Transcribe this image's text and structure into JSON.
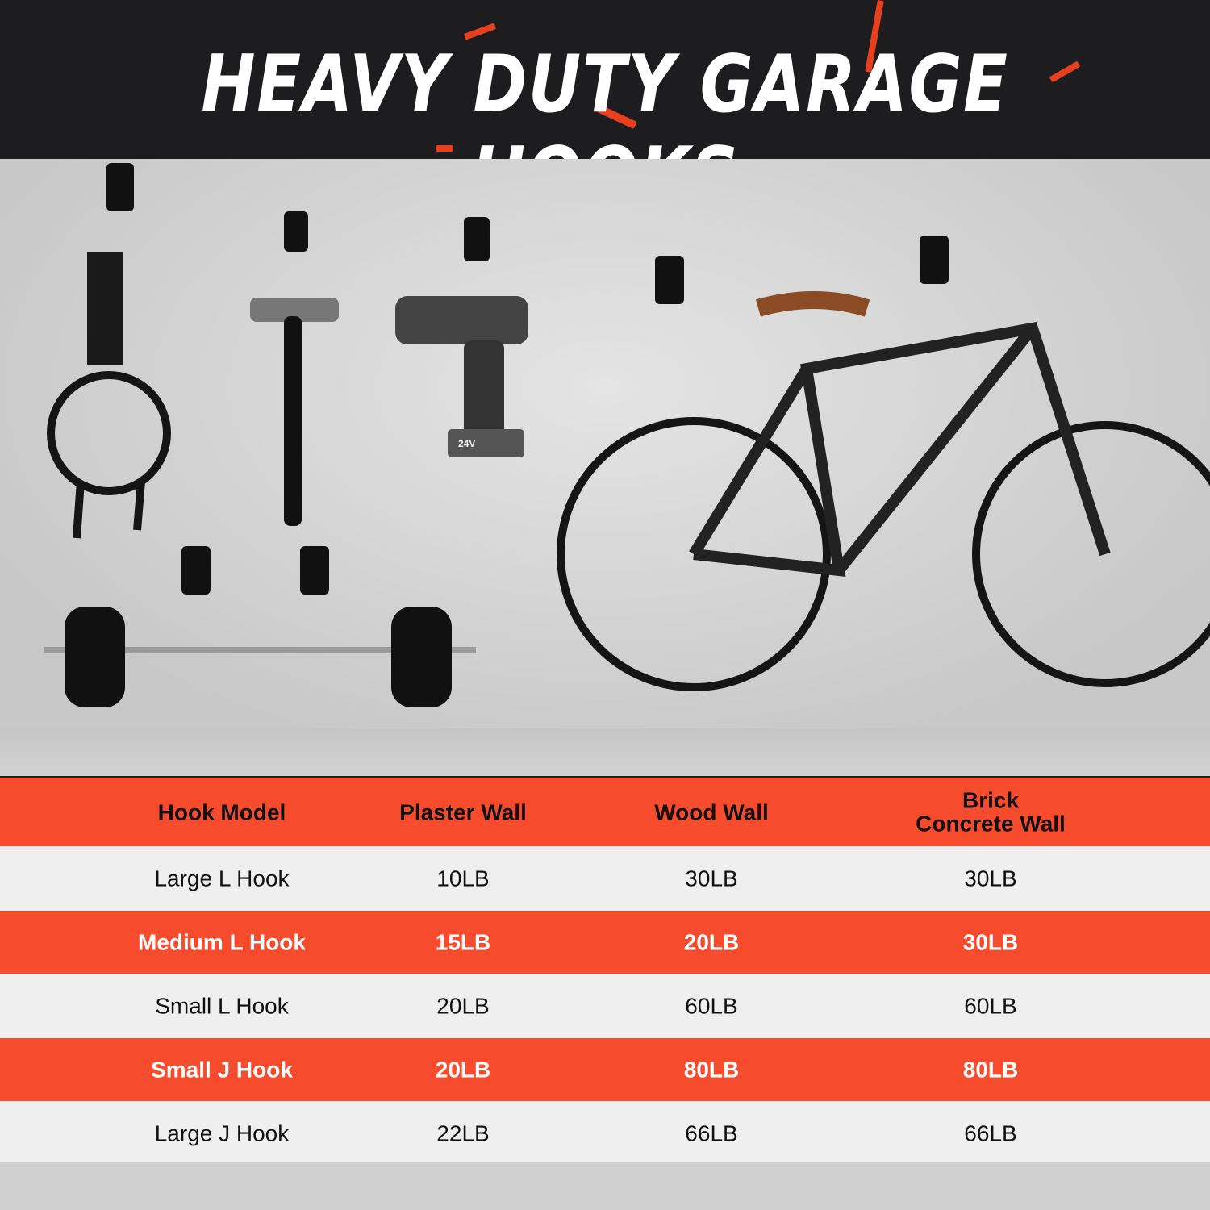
{
  "banner": {
    "title": "HEAVY DUTY GARAGE HOOKS",
    "accent": "#e8401f",
    "background": "#1d1d1f"
  },
  "photo": {
    "items": [
      "extension-cord",
      "hammer",
      "drill",
      "barbell",
      "bicycle"
    ],
    "drill_label": "24V"
  },
  "table": {
    "header_color": "#f74b2e",
    "headers": [
      "Hook Model",
      "Plaster Wall",
      "Wood Wall",
      "Brick\nConcrete Wall"
    ],
    "header_brick_line1": "Brick",
    "header_brick_line2": "Concrete Wall",
    "rows": [
      [
        "Large L Hook",
        "10LB",
        "30LB",
        "30LB"
      ],
      [
        "Medium L Hook",
        "15LB",
        "20LB",
        "30LB"
      ],
      [
        "Small L Hook",
        "20LB",
        "60LB",
        "60LB"
      ],
      [
        "Small J Hook",
        "20LB",
        "80LB",
        "80LB"
      ],
      [
        "Large J Hook",
        "22LB",
        "66LB",
        "66LB"
      ]
    ]
  }
}
